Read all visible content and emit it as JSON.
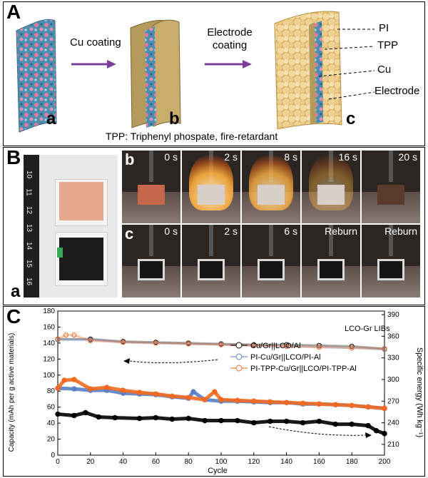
{
  "figure": {
    "panels": {
      "a": {
        "label": "A",
        "steps": [
          {
            "arrow_label": "Cu coating"
          },
          {
            "arrow_label": "Electrode coating"
          }
        ],
        "sub_labels": [
          "a",
          "b",
          "c"
        ],
        "layers": [
          "PI",
          "TPP",
          "Cu",
          "Electrode"
        ],
        "caption": "TPP:  Triphenyl phospate, fire-retardant"
      },
      "b": {
        "label": "B",
        "sub_a": "a",
        "sub_b": "b",
        "sub_c": "c",
        "row_b_times": [
          "0 s",
          "2 s",
          "8 s",
          "16 s",
          "20 s"
        ],
        "row_c_times": [
          "0 s",
          "2 s",
          "6 s",
          "Reburn",
          "Reburn"
        ],
        "ruler_ticks": [
          "10",
          "11",
          "12",
          "13",
          "14",
          "15",
          "16"
        ]
      },
      "c": {
        "label": "C",
        "annotation": "LCO-Gr LIBs"
      }
    }
  },
  "colors": {
    "arrow": "#7b3f98",
    "series_black": "#000000",
    "series_blue": "#5b7fc4",
    "series_orange": "#f26a21"
  },
  "chart_data": {
    "type": "scatter",
    "xlabel": "Cycle",
    "ylabel_left": "Capacity (mAh per g active materials)",
    "ylabel_right": "Specific energy (Wh kg⁻¹)",
    "x_ticks": [
      "0",
      "20",
      "40",
      "60",
      "80",
      "100",
      "120",
      "140",
      "160",
      "180",
      "200"
    ],
    "y_ticks_left": [
      "0",
      "20",
      "40",
      "60",
      "80",
      "100",
      "120",
      "140",
      "160",
      "180"
    ],
    "y_ticks_right": [
      "210",
      "240",
      "270",
      "300",
      "330",
      "360",
      "390"
    ],
    "xlim": [
      0,
      200
    ],
    "ylim_left": [
      0,
      180
    ],
    "ylim_right": [
      195,
      395
    ],
    "legend": [
      {
        "name": "Cu/Gr||LCO/Al",
        "color": "#000000"
      },
      {
        "name": "PI-Cu/Gr||LCO/PI-Al",
        "color": "#5b7fc4"
      },
      {
        "name": "PI-TPP-Cu/Gr||LCO/PI-TPP-Al",
        "color": "#f26a21"
      }
    ],
    "series": [
      {
        "name": "Cu/Gr||LCO/Al capacity",
        "axis": "left",
        "color": "#000000",
        "style": "open-circle",
        "x": [
          0,
          20,
          40,
          60,
          80,
          100,
          120,
          140,
          160,
          180,
          200
        ],
        "y": [
          145,
          145,
          142,
          141,
          140,
          139,
          138,
          138,
          137,
          136,
          133
        ]
      },
      {
        "name": "PI-Cu/Gr||LCO/PI-Al capacity",
        "axis": "left",
        "color": "#5b7fc4",
        "style": "open-circle",
        "x": [
          0,
          20,
          40,
          60,
          80,
          100,
          120,
          140,
          160,
          180,
          200
        ],
        "y": [
          144,
          144,
          141,
          140,
          139,
          138,
          137,
          136,
          135,
          134,
          132
        ]
      },
      {
        "name": "PI-TPP-Cu/Gr||LCO/PI-TPP-Al capacity",
        "axis": "left",
        "color": "#f26a21",
        "style": "open-circle",
        "x": [
          0,
          5,
          10,
          20,
          40,
          60,
          80,
          100,
          120,
          140,
          160,
          180,
          200
        ],
        "y": [
          145,
          150,
          150,
          143,
          141,
          140,
          139,
          138,
          137,
          136,
          135,
          134,
          133
        ]
      },
      {
        "name": "Cu/Gr||LCO/Al energy",
        "axis": "right",
        "color": "#000000",
        "style": "filled-circle",
        "x": [
          0,
          10,
          17,
          25,
          35,
          50,
          60,
          70,
          80,
          90,
          100,
          110,
          120,
          130,
          140,
          150,
          160,
          170,
          180,
          190,
          195,
          200
        ],
        "y": [
          252,
          250,
          254,
          248,
          247,
          246,
          247,
          245,
          246,
          243,
          243,
          243,
          240,
          242,
          242,
          240,
          242,
          238,
          238,
          236,
          229,
          225
        ]
      },
      {
        "name": "PI-Cu/Gr||LCO/PI-Al energy",
        "axis": "right",
        "color": "#5b7fc4",
        "style": "filled-circle",
        "x": [
          0,
          10,
          20,
          30,
          40,
          50,
          60,
          70,
          80,
          83,
          90,
          100,
          110,
          120,
          130,
          140,
          150,
          160,
          170,
          180,
          190,
          200
        ],
        "y": [
          288,
          287,
          285,
          285,
          281,
          280,
          279,
          276,
          274,
          283,
          272,
          270,
          270,
          269,
          268,
          268,
          266,
          266,
          265,
          264,
          262,
          260
        ]
      },
      {
        "name": "PI-TPP-Cu/Gr||LCO/PI-TPP-Al energy",
        "axis": "right",
        "color": "#f26a21",
        "style": "filled-circle",
        "x": [
          0,
          4,
          10,
          20,
          30,
          40,
          50,
          60,
          70,
          80,
          90,
          96,
          100,
          110,
          120,
          130,
          140,
          150,
          160,
          170,
          180,
          190,
          200
        ],
        "y": [
          288,
          299,
          300,
          287,
          289,
          285,
          282,
          280,
          277,
          275,
          272,
          283,
          272,
          271,
          270,
          269,
          268,
          267,
          266,
          265,
          264,
          262,
          260
        ]
      }
    ]
  }
}
